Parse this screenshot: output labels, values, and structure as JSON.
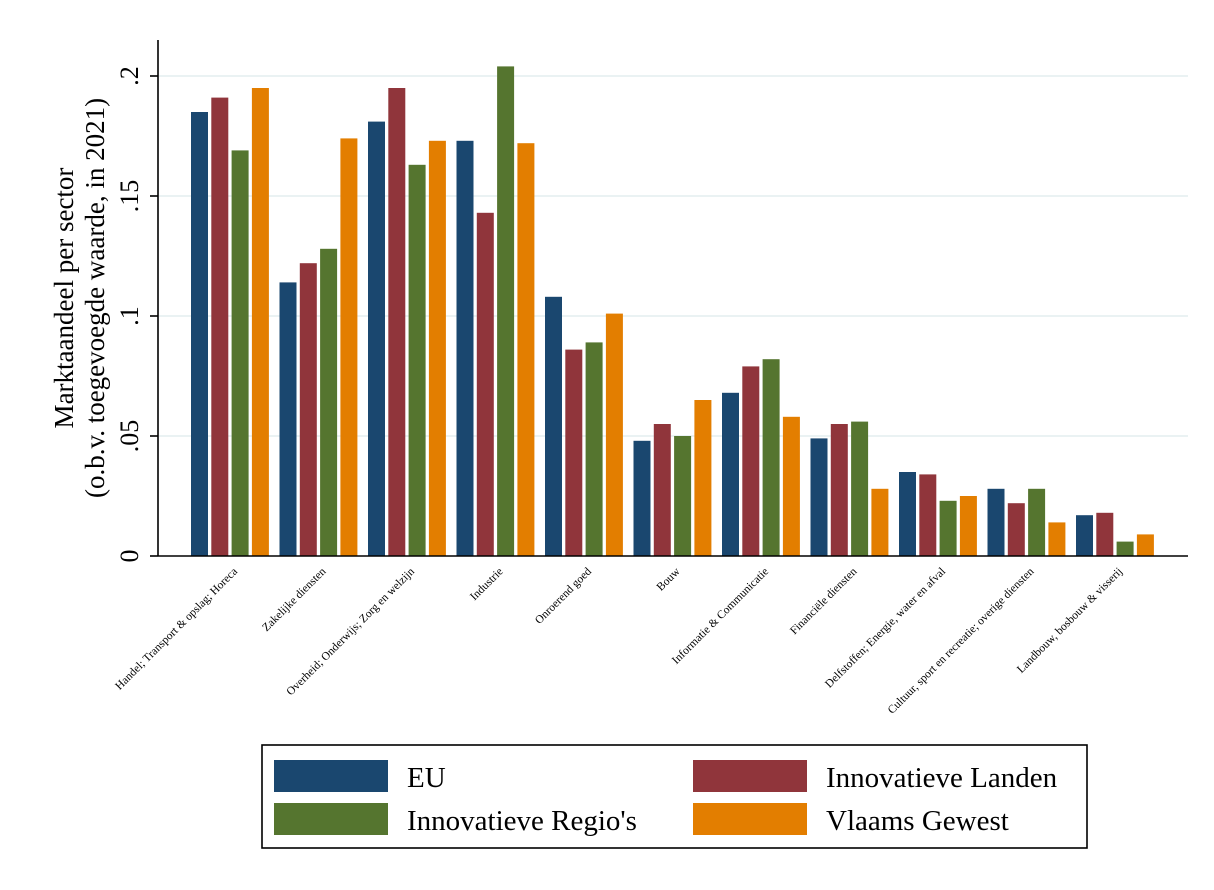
{
  "chart_data": {
    "type": "bar",
    "ylabel_lines": [
      "Marktaandeel per sector",
      "(o.b.v. toegevoegde waarde, in 2021)"
    ],
    "ylim": [
      0,
      0.215
    ],
    "yticks": [
      {
        "value": 0,
        "label": "0"
      },
      {
        "value": 0.05,
        "label": ".05"
      },
      {
        "value": 0.1,
        "label": ".1"
      },
      {
        "value": 0.15,
        "label": ".15"
      },
      {
        "value": 0.2,
        "label": ".2"
      }
    ],
    "grid": true,
    "legend_position": "bottom",
    "categories": [
      "Handel; Transport & opslag; Horeca",
      "Zakelijke diensten",
      "Overheid; Onderwijs; Zorg en welzijn",
      "Industrie",
      "Onroerend goed",
      "Bouw",
      "Informatie & Communicatie",
      "Financiële diensten",
      "Delfstoffen; Energie, water en afval",
      "Cultuur, sport en recreatie; overige diensten",
      "Landbouw, bosbouw & visserij"
    ],
    "series": [
      {
        "name": "EU",
        "color": "#1a476f",
        "values": [
          0.185,
          0.114,
          0.181,
          0.173,
          0.108,
          0.048,
          0.068,
          0.049,
          0.035,
          0.028,
          0.017
        ]
      },
      {
        "name": "Innovatieve Landen",
        "color": "#90353b",
        "values": [
          0.191,
          0.122,
          0.195,
          0.143,
          0.086,
          0.055,
          0.079,
          0.055,
          0.034,
          0.022,
          0.018
        ]
      },
      {
        "name": "Innovatieve Regio's",
        "color": "#55752f",
        "values": [
          0.169,
          0.128,
          0.163,
          0.204,
          0.089,
          0.05,
          0.082,
          0.056,
          0.023,
          0.028,
          0.006
        ]
      },
      {
        "name": "Vlaams Gewest",
        "color": "#e37e00",
        "values": [
          0.195,
          0.174,
          0.173,
          0.172,
          0.101,
          0.065,
          0.058,
          0.028,
          0.025,
          0.014,
          0.009
        ]
      }
    ]
  }
}
